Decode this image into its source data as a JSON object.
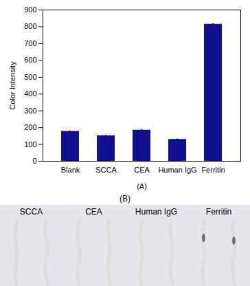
{
  "chart_data": {
    "type": "bar",
    "categories": [
      "Blank",
      "SCCA",
      "CEA",
      "Human IgG",
      "Ferritin"
    ],
    "values": [
      178,
      152,
      185,
      130,
      815
    ],
    "errors": [
      2,
      2,
      2,
      2,
      3
    ],
    "color": "#0f0f8f",
    "ylabel": "Color Intensity",
    "xlabel": "(A)",
    "ylim": [
      0,
      900
    ],
    "yticks": [
      0,
      100,
      200,
      300,
      400,
      500,
      600,
      700,
      800,
      900
    ],
    "grid": false
  },
  "panel_b": {
    "caption": "(B)",
    "labels": [
      "SCCA",
      "CEA",
      "Human IgG",
      "Ferritin"
    ]
  }
}
